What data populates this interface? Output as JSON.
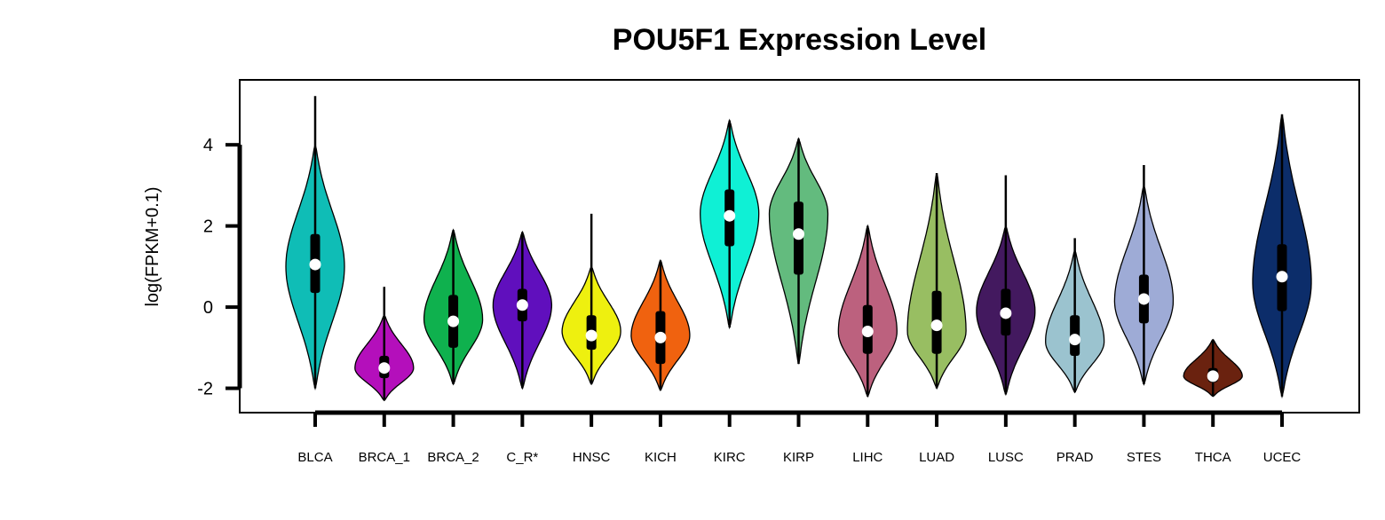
{
  "chart_data": {
    "type": "violin",
    "title": "POU5F1 Expression Level",
    "xlabel": "",
    "ylabel": "log(FPKM+0.1)",
    "ylim": [
      -2.6,
      5.6
    ],
    "yticks": [
      -2,
      0,
      2,
      4
    ],
    "categories": [
      "BLCA",
      "BRCA_1",
      "BRCA_2",
      "C_R*",
      "HNSC",
      "KICH",
      "KIRC",
      "KIRP",
      "LIHC",
      "LUAD",
      "LUSC",
      "PRAD",
      "STES",
      "THCA",
      "UCEC"
    ],
    "colors": [
      "#0fbdb6",
      "#b40fbb",
      "#0fb14e",
      "#600fbd",
      "#eef00f",
      "#f0620f",
      "#0ff0d5",
      "#63bb7e",
      "#bc617e",
      "#98be62",
      "#43195f",
      "#9bc3cf",
      "#9eabd6",
      "#6a220f",
      "#0c2d6a"
    ],
    "series": [
      {
        "min": -2.0,
        "q1": 0.35,
        "median": 1.05,
        "q3": 1.8,
        "max": 5.2,
        "vmin": -2.0,
        "vmax": 4.0,
        "mode": 1.0
      },
      {
        "min": -2.3,
        "q1": -1.75,
        "median": -1.5,
        "q3": -1.2,
        "max": 0.5,
        "vmin": -2.3,
        "vmax": -0.2,
        "mode": -1.5
      },
      {
        "min": -1.9,
        "q1": -1.0,
        "median": -0.35,
        "q3": 0.3,
        "max": 1.9,
        "vmin": -1.9,
        "vmax": 1.9,
        "mode": -0.3
      },
      {
        "min": -2.0,
        "q1": -0.35,
        "median": 0.05,
        "q3": 0.45,
        "max": 1.85,
        "vmin": -2.0,
        "vmax": 1.85,
        "mode": 0.05
      },
      {
        "min": -1.9,
        "q1": -1.05,
        "median": -0.7,
        "q3": -0.2,
        "max": 2.3,
        "vmin": -1.9,
        "vmax": 1.0,
        "mode": -0.6
      },
      {
        "min": -2.05,
        "q1": -1.4,
        "median": -0.75,
        "q3": -0.1,
        "max": 1.15,
        "vmin": -2.05,
        "vmax": 1.15,
        "mode": -0.7
      },
      {
        "min": -0.5,
        "q1": 1.5,
        "median": 2.25,
        "q3": 2.9,
        "max": 4.6,
        "vmin": -0.5,
        "vmax": 4.6,
        "mode": 2.3
      },
      {
        "min": -1.4,
        "q1": 0.8,
        "median": 1.8,
        "q3": 2.6,
        "max": 4.15,
        "vmin": -1.4,
        "vmax": 4.15,
        "mode": 2.3
      },
      {
        "min": -2.2,
        "q1": -1.15,
        "median": -0.6,
        "q3": 0.05,
        "max": 2.0,
        "vmin": -2.2,
        "vmax": 2.0,
        "mode": -0.6
      },
      {
        "min": -2.0,
        "q1": -1.15,
        "median": -0.45,
        "q3": 0.4,
        "max": 3.3,
        "vmin": -2.0,
        "vmax": 3.3,
        "mode": -0.6
      },
      {
        "min": -2.15,
        "q1": -0.7,
        "median": -0.15,
        "q3": 0.45,
        "max": 3.25,
        "vmin": -2.15,
        "vmax": 2.0,
        "mode": -0.1
      },
      {
        "min": -2.1,
        "q1": -1.2,
        "median": -0.8,
        "q3": -0.2,
        "max": 1.7,
        "vmin": -2.1,
        "vmax": 1.4,
        "mode": -0.85
      },
      {
        "min": -1.9,
        "q1": -0.4,
        "median": 0.2,
        "q3": 0.8,
        "max": 3.5,
        "vmin": -1.9,
        "vmax": 3.0,
        "mode": 0.15
      },
      {
        "min": -2.2,
        "q1": -1.85,
        "median": -1.7,
        "q3": -1.5,
        "max": -0.8,
        "vmin": -2.2,
        "vmax": -0.8,
        "mode": -1.7
      },
      {
        "min": -2.2,
        "q1": -0.1,
        "median": 0.75,
        "q3": 1.55,
        "max": 4.75,
        "vmin": -2.2,
        "vmax": 4.75,
        "mode": 0.6
      }
    ]
  }
}
